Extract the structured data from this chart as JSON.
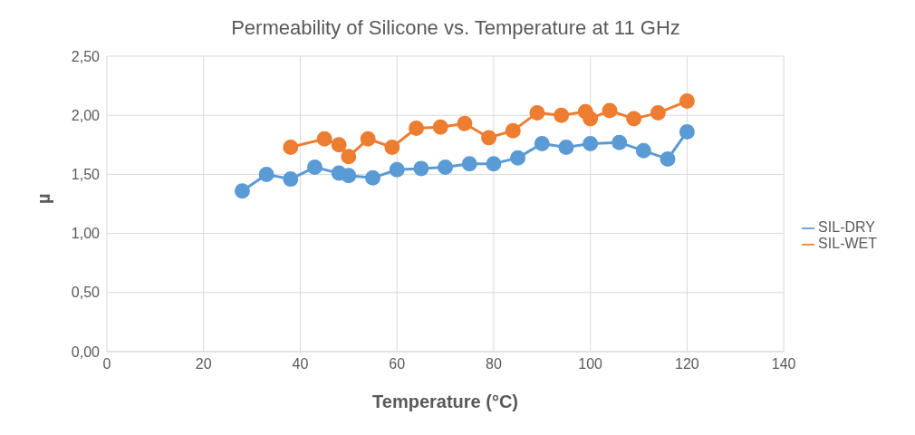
{
  "chart_data": {
    "type": "line",
    "title": "Permeability of Silicone vs. Temperature at 11 GHz",
    "xlabel": "Temperature (°C)",
    "ylabel": "µ",
    "series": [
      {
        "name": "SIL-DRY",
        "color": "#5b9bd5",
        "x": [
          28,
          33,
          38,
          43,
          48,
          50,
          55,
          60,
          65,
          70,
          75,
          80,
          85,
          90,
          95,
          100,
          106,
          111,
          116,
          120
        ],
        "values": [
          1.36,
          1.5,
          1.46,
          1.56,
          1.51,
          1.49,
          1.47,
          1.54,
          1.55,
          1.56,
          1.59,
          1.59,
          1.64,
          1.76,
          1.73,
          1.76,
          1.77,
          1.7,
          1.63,
          1.86
        ]
      },
      {
        "name": "SIL-WET",
        "color": "#ed7d31",
        "x": [
          38,
          45,
          48,
          50,
          54,
          59,
          64,
          69,
          74,
          79,
          84,
          89,
          94,
          99,
          100,
          104,
          109,
          114,
          120
        ],
        "values": [
          1.73,
          1.8,
          1.75,
          1.65,
          1.8,
          1.73,
          1.89,
          1.9,
          1.93,
          1.81,
          1.87,
          2.02,
          2.0,
          2.03,
          1.97,
          2.04,
          1.97,
          2.02,
          2.12
        ]
      }
    ],
    "xlim": [
      0,
      140
    ],
    "xticks": [
      0,
      20,
      40,
      60,
      80,
      100,
      120,
      140
    ],
    "ylim": [
      0,
      2.5
    ],
    "yticks": [
      {
        "value": 0,
        "label": "0,00"
      },
      {
        "value": 0.5,
        "label": "0,50"
      },
      {
        "value": 1,
        "label": "1,00"
      },
      {
        "value": 1.5,
        "label": "1,50"
      },
      {
        "value": 2,
        "label": "2,00"
      },
      {
        "value": 2.5,
        "label": "2,50"
      }
    ],
    "grid": true,
    "legend": "right",
    "marker": "circle",
    "line_style": "solid"
  }
}
